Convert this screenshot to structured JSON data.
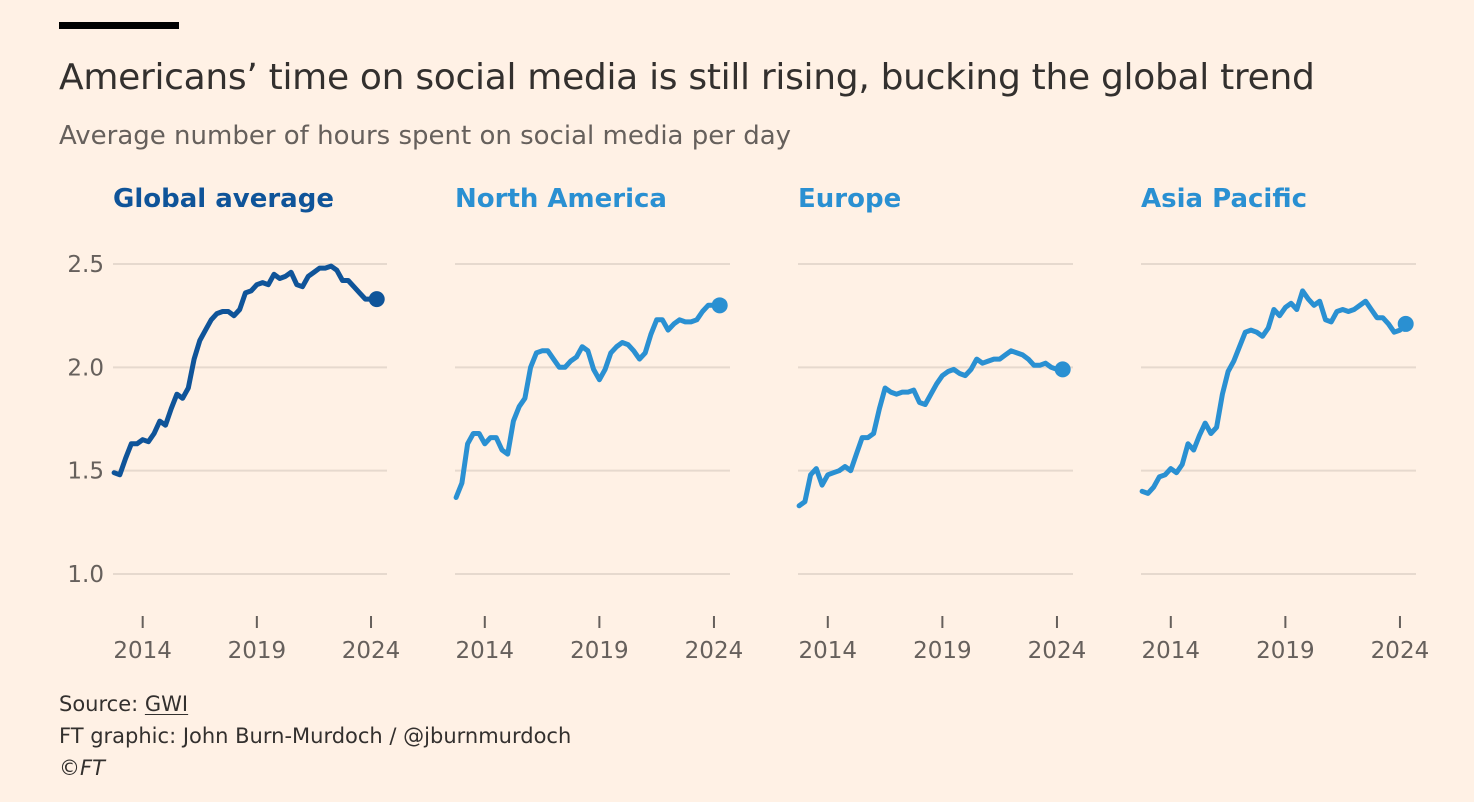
{
  "header": {
    "title": "Americans’ time on social media is still rising, bucking the global trend",
    "subtitle": "Average number of hours spent on social media per day"
  },
  "footer": {
    "source_prefix": "Source: ",
    "source_link": "GWI",
    "credit": "FT graphic: John Burn-Murdoch / @jburnmurdoch",
    "copyright": "©FT"
  },
  "colors": {
    "background": "#FFF1E5",
    "global": "#0F5499",
    "regional": "#2A90D2",
    "gridline": "#E6D9CE",
    "axis_text": "#66605C"
  },
  "chart_data": [
    {
      "type": "line",
      "title": "Global average",
      "color": "#0F5499",
      "ylim": [
        1.0,
        2.5
      ],
      "yticks": [
        1.0,
        1.5,
        2.0,
        2.5
      ],
      "ytick_labels": [
        "1.0",
        "1.5",
        "2.0",
        "2.5"
      ],
      "xticks": [
        2014,
        2019,
        2024
      ],
      "xlim": [
        2012.7,
        2024.7
      ],
      "grid": true,
      "end_marker": true,
      "x": [
        2012.75,
        2013,
        2013.25,
        2013.5,
        2013.75,
        2014,
        2014.25,
        2014.5,
        2014.75,
        2015,
        2015.25,
        2015.5,
        2015.75,
        2016,
        2016.25,
        2016.5,
        2016.75,
        2017,
        2017.25,
        2017.5,
        2017.75,
        2018,
        2018.25,
        2018.5,
        2018.75,
        2019,
        2019.25,
        2019.5,
        2019.75,
        2020,
        2020.25,
        2020.5,
        2020.75,
        2021,
        2021.25,
        2021.5,
        2021.75,
        2022,
        2022.25,
        2022.5,
        2022.75,
        2023,
        2023.25,
        2023.5,
        2023.75,
        2024,
        2024.25
      ],
      "y": [
        1.49,
        1.48,
        1.56,
        1.63,
        1.63,
        1.65,
        1.64,
        1.68,
        1.74,
        1.72,
        1.8,
        1.87,
        1.85,
        1.9,
        2.04,
        2.13,
        2.18,
        2.23,
        2.26,
        2.27,
        2.27,
        2.25,
        2.28,
        2.36,
        2.37,
        2.4,
        2.41,
        2.4,
        2.45,
        2.43,
        2.44,
        2.46,
        2.4,
        2.39,
        2.44,
        2.46,
        2.48,
        2.48,
        2.49,
        2.47,
        2.42,
        2.42,
        2.39,
        2.36,
        2.33,
        2.33,
        2.33
      ]
    },
    {
      "type": "line",
      "title": "North America",
      "color": "#2A90D2",
      "ylim": [
        1.0,
        2.5
      ],
      "xticks": [
        2014,
        2019,
        2024
      ],
      "xlim": [
        2012.7,
        2024.7
      ],
      "grid": true,
      "end_marker": true,
      "x": [
        2012.75,
        2013,
        2013.25,
        2013.5,
        2013.75,
        2014,
        2014.25,
        2014.5,
        2014.75,
        2015,
        2015.25,
        2015.5,
        2015.75,
        2016,
        2016.25,
        2016.5,
        2016.75,
        2017,
        2017.25,
        2017.5,
        2017.75,
        2018,
        2018.25,
        2018.5,
        2018.75,
        2019,
        2019.25,
        2019.5,
        2019.75,
        2020,
        2020.25,
        2020.5,
        2020.75,
        2021,
        2021.25,
        2021.5,
        2021.75,
        2022,
        2022.25,
        2022.5,
        2022.75,
        2023,
        2023.25,
        2023.5,
        2023.75,
        2024,
        2024.25
      ],
      "y": [
        1.37,
        1.44,
        1.63,
        1.68,
        1.68,
        1.63,
        1.66,
        1.66,
        1.6,
        1.58,
        1.74,
        1.81,
        1.85,
        2.0,
        2.07,
        2.08,
        2.08,
        2.04,
        2.0,
        2.0,
        2.03,
        2.05,
        2.1,
        2.08,
        1.99,
        1.94,
        1.99,
        2.07,
        2.1,
        2.12,
        2.11,
        2.08,
        2.04,
        2.07,
        2.16,
        2.23,
        2.23,
        2.18,
        2.21,
        2.23,
        2.22,
        2.22,
        2.23,
        2.27,
        2.3,
        2.3,
        2.3
      ]
    },
    {
      "type": "line",
      "title": "Europe",
      "color": "#2A90D2",
      "ylim": [
        1.0,
        2.5
      ],
      "xticks": [
        2014,
        2019,
        2024
      ],
      "xlim": [
        2012.7,
        2024.7
      ],
      "grid": true,
      "end_marker": true,
      "x": [
        2012.75,
        2013,
        2013.25,
        2013.5,
        2013.75,
        2014,
        2014.25,
        2014.5,
        2014.75,
        2015,
        2015.25,
        2015.5,
        2015.75,
        2016,
        2016.25,
        2016.5,
        2016.75,
        2017,
        2017.25,
        2017.5,
        2017.75,
        2018,
        2018.25,
        2018.5,
        2018.75,
        2019,
        2019.25,
        2019.5,
        2019.75,
        2020,
        2020.25,
        2020.5,
        2020.75,
        2021,
        2021.25,
        2021.5,
        2021.75,
        2022,
        2022.25,
        2022.5,
        2022.75,
        2023,
        2023.25,
        2023.5,
        2023.75,
        2024,
        2024.25
      ],
      "y": [
        1.33,
        1.35,
        1.48,
        1.51,
        1.43,
        1.48,
        1.49,
        1.5,
        1.52,
        1.5,
        1.58,
        1.66,
        1.66,
        1.68,
        1.8,
        1.9,
        1.88,
        1.87,
        1.88,
        1.88,
        1.89,
        1.83,
        1.82,
        1.87,
        1.92,
        1.96,
        1.98,
        1.99,
        1.97,
        1.96,
        1.99,
        2.04,
        2.02,
        2.03,
        2.04,
        2.04,
        2.06,
        2.08,
        2.07,
        2.06,
        2.04,
        2.01,
        2.01,
        2.02,
        2.0,
        1.99,
        1.99
      ]
    },
    {
      "type": "line",
      "title": "Asia Pacific",
      "color": "#2A90D2",
      "ylim": [
        1.0,
        2.5
      ],
      "xticks": [
        2014,
        2019,
        2024
      ],
      "xlim": [
        2012.7,
        2024.7
      ],
      "grid": true,
      "end_marker": true,
      "x": [
        2012.75,
        2013,
        2013.25,
        2013.5,
        2013.75,
        2014,
        2014.25,
        2014.5,
        2014.75,
        2015,
        2015.25,
        2015.5,
        2015.75,
        2016,
        2016.25,
        2016.5,
        2016.75,
        2017,
        2017.25,
        2017.5,
        2017.75,
        2018,
        2018.25,
        2018.5,
        2018.75,
        2019,
        2019.25,
        2019.5,
        2019.75,
        2020,
        2020.25,
        2020.5,
        2020.75,
        2021,
        2021.25,
        2021.5,
        2021.75,
        2022,
        2022.25,
        2022.5,
        2022.75,
        2023,
        2023.25,
        2023.5,
        2023.75,
        2024,
        2024.25
      ],
      "y": [
        1.4,
        1.39,
        1.42,
        1.47,
        1.48,
        1.51,
        1.49,
        1.53,
        1.63,
        1.6,
        1.67,
        1.73,
        1.68,
        1.71,
        1.87,
        1.98,
        2.03,
        2.1,
        2.17,
        2.18,
        2.17,
        2.15,
        2.19,
        2.28,
        2.25,
        2.29,
        2.31,
        2.28,
        2.37,
        2.33,
        2.3,
        2.32,
        2.23,
        2.22,
        2.27,
        2.28,
        2.27,
        2.28,
        2.3,
        2.32,
        2.28,
        2.24,
        2.24,
        2.21,
        2.17,
        2.18,
        2.21
      ]
    }
  ]
}
